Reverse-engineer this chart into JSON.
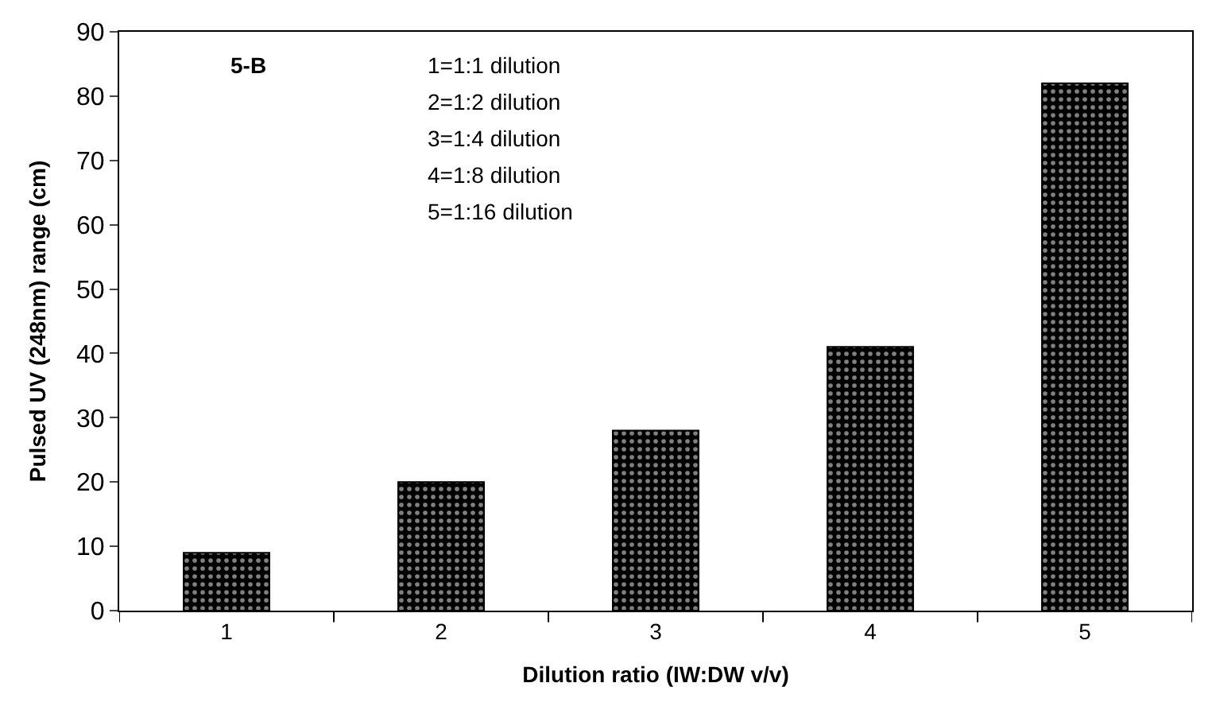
{
  "chart_data": {
    "type": "bar",
    "xlabel": "Dilution ratio (IW:DW v/v)",
    "ylabel": "Pulsed UV (248nm) range (cm)",
    "categories": [
      "1",
      "2",
      "3",
      "4",
      "5"
    ],
    "values": [
      9,
      20,
      28,
      41,
      82
    ],
    "color": "#000000",
    "ylim": [
      0,
      90
    ],
    "yticks": [
      0,
      10,
      20,
      30,
      40,
      50,
      60,
      70,
      80,
      90
    ],
    "annotations": [
      "5-B",
      "1=1:1 dilution",
      "2=1:2 dilution",
      "3=1:4 dilution",
      "4=1:8 dilution",
      "5=1:16 dilution"
    ]
  }
}
